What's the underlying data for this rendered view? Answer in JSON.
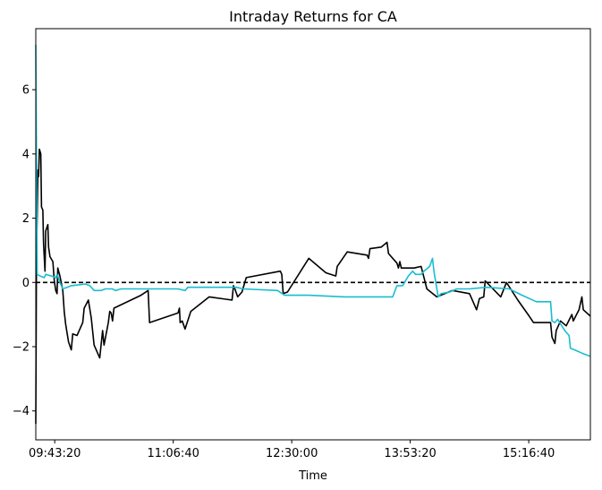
{
  "chart_data": {
    "type": "line",
    "title": "Intraday Returns for CA",
    "xlabel": "Time",
    "ylabel": "",
    "x_ticks": [
      "09:43:20",
      "11:06:40",
      "12:30:00",
      "13:53:20",
      "15:16:40"
    ],
    "y_ticks": [
      "−4",
      "−2",
      "0",
      "2",
      "4",
      "6"
    ],
    "y_tick_values": [
      -4,
      -2,
      0,
      2,
      4,
      6
    ],
    "xlim": [
      "09:30:00",
      "16:00:00"
    ],
    "ylim": [
      -4.9,
      7.9
    ],
    "grid": false,
    "reference_line": {
      "y": 0,
      "style": "dashed",
      "color": "#000000"
    },
    "series": [
      {
        "color": "#000000",
        "points": [
          [
            "09:30:00",
            -4.4
          ],
          [
            "09:30:30",
            1.0
          ],
          [
            "09:31:00",
            2.1
          ],
          [
            "09:31:30",
            3.5
          ],
          [
            "09:32:00",
            3.3
          ],
          [
            "09:32:30",
            4.15
          ],
          [
            "09:33:30",
            4.0
          ],
          [
            "09:34:00",
            2.35
          ],
          [
            "09:35:00",
            2.25
          ],
          [
            "09:35:30",
            1.2
          ],
          [
            "09:36:30",
            0.35
          ],
          [
            "09:37:00",
            1.6
          ],
          [
            "09:38:30",
            1.8
          ],
          [
            "09:39:00",
            1.1
          ],
          [
            "09:40:00",
            0.8
          ],
          [
            "09:42:00",
            0.65
          ],
          [
            "09:43:00",
            0.05
          ],
          [
            "09:44:00",
            -0.25
          ],
          [
            "09:45:00",
            -0.35
          ],
          [
            "09:45:30",
            0.45
          ],
          [
            "09:47:00",
            0.2
          ],
          [
            "09:49:00",
            -0.25
          ],
          [
            "09:50:00",
            -0.9
          ],
          [
            "09:51:00",
            -1.3
          ],
          [
            "09:53:00",
            -1.85
          ],
          [
            "09:55:00",
            -2.1
          ],
          [
            "09:56:00",
            -1.6
          ],
          [
            "09:59:00",
            -1.65
          ],
          [
            "10:01:00",
            -1.45
          ],
          [
            "10:03:00",
            -1.25
          ],
          [
            "10:04:00",
            -0.8
          ],
          [
            "10:07:00",
            -0.55
          ],
          [
            "10:09:00",
            -1.1
          ],
          [
            "10:11:00",
            -1.95
          ],
          [
            "10:15:00",
            -2.35
          ],
          [
            "10:17:00",
            -1.5
          ],
          [
            "10:18:00",
            -1.95
          ],
          [
            "10:21:00",
            -1.25
          ],
          [
            "10:22:00",
            -0.9
          ],
          [
            "10:23:00",
            -0.95
          ],
          [
            "10:24:00",
            -1.2
          ],
          [
            "10:25:00",
            -0.8
          ],
          [
            "10:44:00",
            -0.4
          ],
          [
            "10:49:00",
            -0.25
          ],
          [
            "10:50:00",
            -1.25
          ],
          [
            "11:10:00",
            -0.95
          ],
          [
            "11:11:00",
            -0.8
          ],
          [
            "11:11:30",
            -1.25
          ],
          [
            "11:13:00",
            -1.2
          ],
          [
            "11:15:00",
            -1.45
          ],
          [
            "11:19:00",
            -0.9
          ],
          [
            "11:32:00",
            -0.45
          ],
          [
            "11:48:00",
            -0.55
          ],
          [
            "11:49:00",
            -0.1
          ],
          [
            "11:50:00",
            -0.2
          ],
          [
            "11:52:00",
            -0.45
          ],
          [
            "11:55:00",
            -0.3
          ],
          [
            "11:58:00",
            0.15
          ],
          [
            "12:22:00",
            0.35
          ],
          [
            "12:23:00",
            0.25
          ],
          [
            "12:24:00",
            -0.35
          ],
          [
            "12:27:00",
            -0.3
          ],
          [
            "12:42:00",
            0.75
          ],
          [
            "12:54:00",
            0.3
          ],
          [
            "13:01:00",
            0.2
          ],
          [
            "13:02:00",
            0.5
          ],
          [
            "13:09:00",
            0.95
          ],
          [
            "13:23:00",
            0.85
          ],
          [
            "13:24:00",
            0.75
          ],
          [
            "13:25:00",
            1.05
          ],
          [
            "13:33:00",
            1.1
          ],
          [
            "13:37:00",
            1.25
          ],
          [
            "13:38:00",
            0.9
          ],
          [
            "13:44:00",
            0.6
          ],
          [
            "13:45:00",
            0.45
          ],
          [
            "13:46:00",
            0.65
          ],
          [
            "13:47:00",
            0.45
          ],
          [
            "13:56:00",
            0.45
          ],
          [
            "14:01:00",
            0.5
          ],
          [
            "14:03:00",
            0.15
          ],
          [
            "14:05:00",
            -0.2
          ],
          [
            "14:12:00",
            -0.45
          ],
          [
            "14:23:00",
            -0.25
          ],
          [
            "14:35:00",
            -0.35
          ],
          [
            "14:40:00",
            -0.85
          ],
          [
            "14:42:00",
            -0.5
          ],
          [
            "14:45:00",
            -0.45
          ],
          [
            "14:46:00",
            0.05
          ],
          [
            "14:57:00",
            -0.45
          ],
          [
            "15:01:00",
            0.0
          ],
          [
            "15:09:00",
            -0.55
          ],
          [
            "15:17:00",
            -1.05
          ],
          [
            "15:20:00",
            -1.25
          ],
          [
            "15:32:00",
            -1.25
          ],
          [
            "15:33:00",
            -1.7
          ],
          [
            "15:35:00",
            -1.9
          ],
          [
            "15:36:00",
            -1.5
          ],
          [
            "15:39:00",
            -1.2
          ],
          [
            "15:43:00",
            -1.35
          ],
          [
            "15:47:00",
            -1.0
          ],
          [
            "15:48:00",
            -1.2
          ],
          [
            "15:52:00",
            -0.85
          ],
          [
            "15:54:00",
            -0.45
          ],
          [
            "15:55:00",
            -0.85
          ],
          [
            "16:00:00",
            -1.05
          ]
        ]
      },
      {
        "color": "#17becf",
        "points": [
          [
            "09:30:00",
            7.4
          ],
          [
            "09:31:00",
            0.25
          ],
          [
            "09:33:00",
            0.2
          ],
          [
            "09:36:00",
            0.15
          ],
          [
            "09:37:00",
            0.25
          ],
          [
            "09:41:00",
            0.2
          ],
          [
            "09:44:00",
            0.15
          ],
          [
            "09:45:00",
            0.25
          ],
          [
            "09:47:00",
            0.0
          ],
          [
            "09:49:00",
            -0.2
          ],
          [
            "09:52:00",
            -0.15
          ],
          [
            "09:55:00",
            -0.1
          ],
          [
            "10:05:00",
            -0.05
          ],
          [
            "10:08:00",
            -0.1
          ],
          [
            "10:11:00",
            -0.25
          ],
          [
            "10:16:00",
            -0.25
          ],
          [
            "10:19:00",
            -0.2
          ],
          [
            "10:24:00",
            -0.2
          ],
          [
            "10:26:00",
            -0.25
          ],
          [
            "10:30:00",
            -0.2
          ],
          [
            "10:48:00",
            -0.2
          ],
          [
            "11:10:00",
            -0.2
          ],
          [
            "11:15:00",
            -0.25
          ],
          [
            "11:17:00",
            -0.15
          ],
          [
            "11:19:00",
            -0.15
          ],
          [
            "11:28:00",
            -0.15
          ],
          [
            "11:51:00",
            -0.15
          ],
          [
            "11:56:00",
            -0.2
          ],
          [
            "12:20:00",
            -0.25
          ],
          [
            "12:25:00",
            -0.4
          ],
          [
            "12:42:00",
            -0.4
          ],
          [
            "13:07:00",
            -0.45
          ],
          [
            "13:21:00",
            -0.45
          ],
          [
            "13:30:00",
            -0.45
          ],
          [
            "13:41:00",
            -0.45
          ],
          [
            "13:44:00",
            -0.1
          ],
          [
            "13:48:00",
            -0.1
          ],
          [
            "13:50:00",
            0.05
          ],
          [
            "13:52:00",
            0.2
          ],
          [
            "13:55:00",
            0.35
          ],
          [
            "13:57:00",
            0.25
          ],
          [
            "14:01:00",
            0.25
          ],
          [
            "14:03:00",
            0.35
          ],
          [
            "14:07:00",
            0.5
          ],
          [
            "14:09:00",
            0.75
          ],
          [
            "14:10:00",
            0.35
          ],
          [
            "14:13:00",
            -0.45
          ],
          [
            "14:15:00",
            -0.35
          ],
          [
            "14:21:00",
            -0.3
          ],
          [
            "14:26:00",
            -0.2
          ],
          [
            "14:35:00",
            -0.2
          ],
          [
            "14:47:00",
            -0.15
          ],
          [
            "15:03:00",
            -0.2
          ],
          [
            "15:12:00",
            -0.4
          ],
          [
            "15:22:00",
            -0.6
          ],
          [
            "15:32:00",
            -0.6
          ],
          [
            "15:33:00",
            -1.2
          ],
          [
            "15:35:00",
            -1.25
          ],
          [
            "15:37:00",
            -1.15
          ],
          [
            "15:42:00",
            -1.5
          ],
          [
            "15:45:00",
            -1.65
          ],
          [
            "15:46:00",
            -2.05
          ],
          [
            "15:49:00",
            -2.1
          ],
          [
            "15:54:00",
            -2.2
          ],
          [
            "16:00:00",
            -2.3
          ]
        ]
      }
    ]
  }
}
